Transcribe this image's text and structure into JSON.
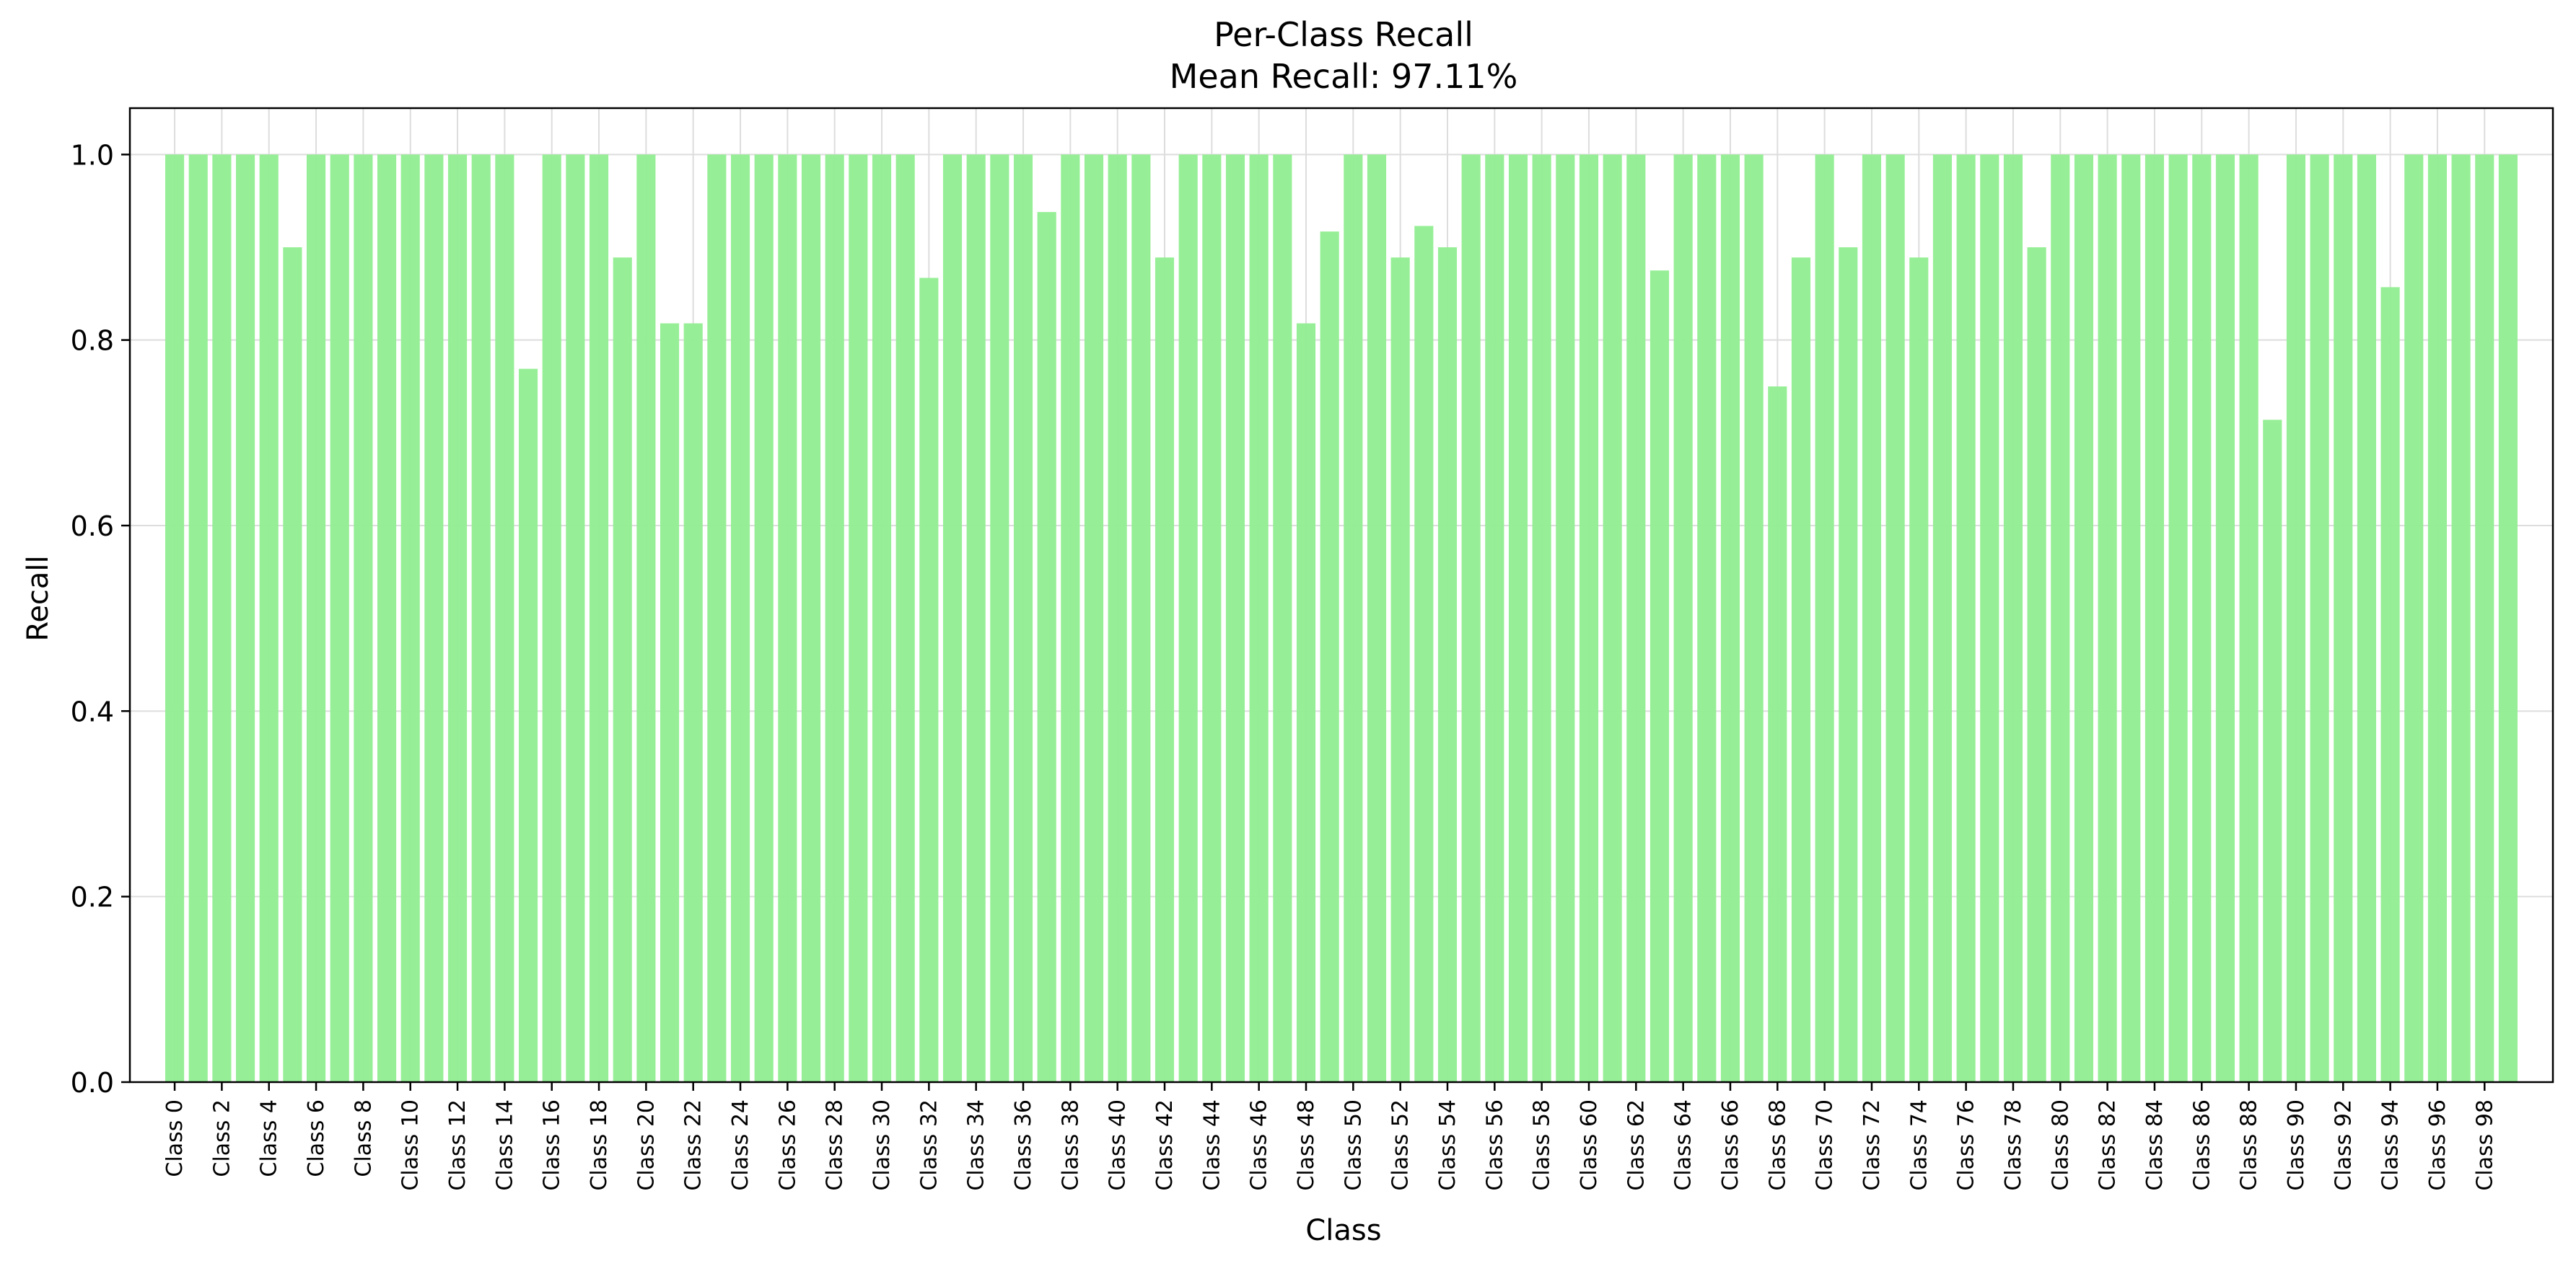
{
  "chart_data": {
    "type": "bar",
    "title": "Per-Class Recall",
    "subtitle": "Mean Recall: 97.11%",
    "xlabel": "Class",
    "ylabel": "Recall",
    "ylim": [
      0,
      1.05
    ],
    "yticks": [
      0.0,
      0.2,
      0.4,
      0.6,
      0.8,
      1.0
    ],
    "ytick_labels": [
      "0.0",
      "0.2",
      "0.4",
      "0.6",
      "0.8",
      "1.0"
    ],
    "grid": "on",
    "bar_color": "#90ee90",
    "categories": [
      "Class 0",
      "Class 1",
      "Class 2",
      "Class 3",
      "Class 4",
      "Class 5",
      "Class 6",
      "Class 7",
      "Class 8",
      "Class 9",
      "Class 10",
      "Class 11",
      "Class 12",
      "Class 13",
      "Class 14",
      "Class 15",
      "Class 16",
      "Class 17",
      "Class 18",
      "Class 19",
      "Class 20",
      "Class 21",
      "Class 22",
      "Class 23",
      "Class 24",
      "Class 25",
      "Class 26",
      "Class 27",
      "Class 28",
      "Class 29",
      "Class 30",
      "Class 31",
      "Class 32",
      "Class 33",
      "Class 34",
      "Class 35",
      "Class 36",
      "Class 37",
      "Class 38",
      "Class 39",
      "Class 40",
      "Class 41",
      "Class 42",
      "Class 43",
      "Class 44",
      "Class 45",
      "Class 46",
      "Class 47",
      "Class 48",
      "Class 49",
      "Class 50",
      "Class 51",
      "Class 52",
      "Class 53",
      "Class 54",
      "Class 55",
      "Class 56",
      "Class 57",
      "Class 58",
      "Class 59",
      "Class 60",
      "Class 61",
      "Class 62",
      "Class 63",
      "Class 64",
      "Class 65",
      "Class 66",
      "Class 67",
      "Class 68",
      "Class 69",
      "Class 70",
      "Class 71",
      "Class 72",
      "Class 73",
      "Class 74",
      "Class 75",
      "Class 76",
      "Class 77",
      "Class 78",
      "Class 79",
      "Class 80",
      "Class 81",
      "Class 82",
      "Class 83",
      "Class 84",
      "Class 85",
      "Class 86",
      "Class 87",
      "Class 88",
      "Class 89",
      "Class 90",
      "Class 91",
      "Class 92",
      "Class 93",
      "Class 94",
      "Class 95",
      "Class 96",
      "Class 97",
      "Class 98",
      "Class 99"
    ],
    "tick_labels": [
      "Class 0",
      "Class 2",
      "Class 4",
      "Class 6",
      "Class 8",
      "Class 10",
      "Class 12",
      "Class 14",
      "Class 16",
      "Class 18",
      "Class 20",
      "Class 22",
      "Class 24",
      "Class 26",
      "Class 28",
      "Class 30",
      "Class 32",
      "Class 34",
      "Class 36",
      "Class 38",
      "Class 40",
      "Class 42",
      "Class 44",
      "Class 46",
      "Class 48",
      "Class 50",
      "Class 52",
      "Class 54",
      "Class 56",
      "Class 58",
      "Class 60",
      "Class 62",
      "Class 64",
      "Class 66",
      "Class 68",
      "Class 70",
      "Class 72",
      "Class 74",
      "Class 76",
      "Class 78",
      "Class 80",
      "Class 82",
      "Class 84",
      "Class 86",
      "Class 88",
      "Class 90",
      "Class 92",
      "Class 94",
      "Class 96",
      "Class 98"
    ],
    "values": [
      1.0,
      1.0,
      1.0,
      1.0,
      1.0,
      0.9,
      1.0,
      1.0,
      1.0,
      1.0,
      1.0,
      1.0,
      1.0,
      1.0,
      1.0,
      0.769,
      1.0,
      1.0,
      1.0,
      0.889,
      1.0,
      0.818,
      0.818,
      1.0,
      1.0,
      1.0,
      1.0,
      1.0,
      1.0,
      1.0,
      1.0,
      1.0,
      0.867,
      1.0,
      1.0,
      1.0,
      1.0,
      0.938,
      1.0,
      1.0,
      1.0,
      1.0,
      0.889,
      1.0,
      1.0,
      1.0,
      1.0,
      1.0,
      0.818,
      0.917,
      1.0,
      1.0,
      0.889,
      0.923,
      0.9,
      1.0,
      1.0,
      1.0,
      1.0,
      1.0,
      1.0,
      1.0,
      1.0,
      0.875,
      1.0,
      1.0,
      1.0,
      1.0,
      0.75,
      0.889,
      1.0,
      0.9,
      1.0,
      1.0,
      0.889,
      1.0,
      1.0,
      1.0,
      1.0,
      0.9,
      1.0,
      1.0,
      1.0,
      1.0,
      1.0,
      1.0,
      1.0,
      1.0,
      1.0,
      0.714,
      1.0,
      1.0,
      1.0,
      1.0,
      0.857,
      1.0,
      1.0,
      1.0,
      1.0,
      1.0
    ]
  }
}
